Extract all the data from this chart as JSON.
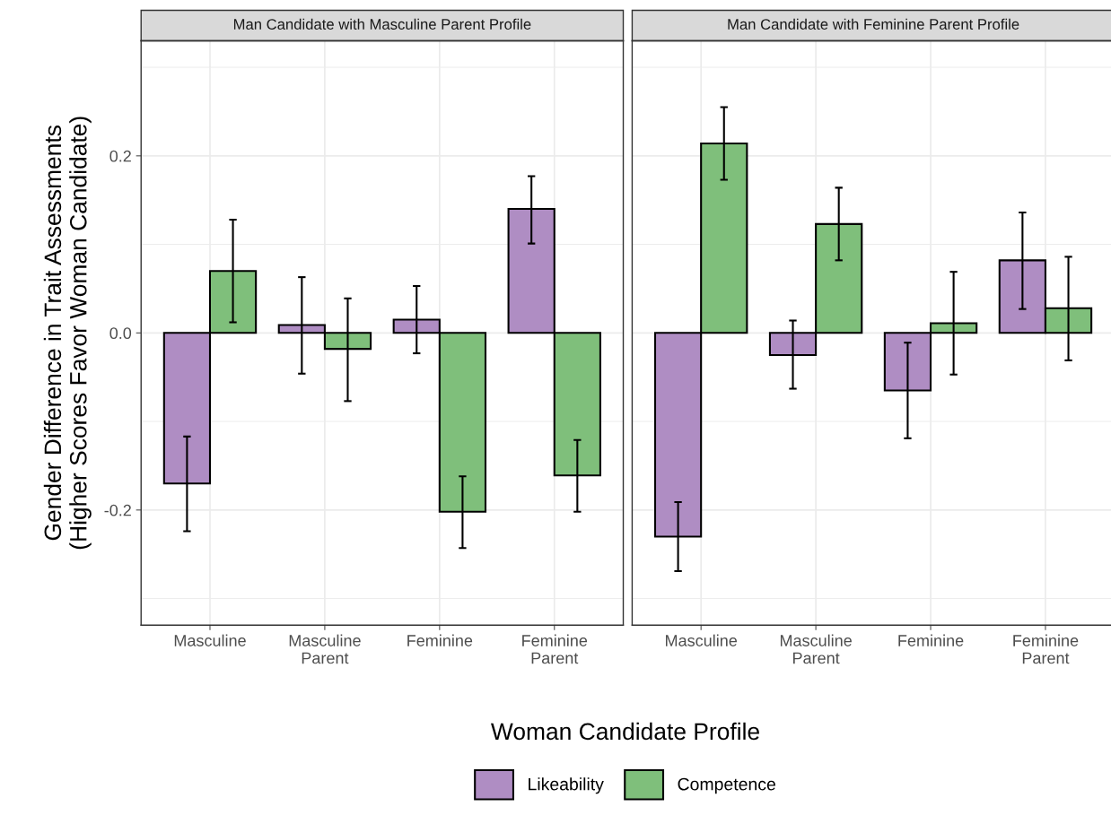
{
  "chart_data": [
    {
      "type": "bar",
      "title": "Man Candidate with Masculine Parent Profile",
      "ylabel": "Gender Difference in Trait Assessments\n(Higher Scores Favor Woman Candidate)",
      "xlabel": "Woman Candidate Profile",
      "categories": [
        "Masculine",
        "Masculine\nParent",
        "Feminine",
        "Feminine\nParent"
      ],
      "series": [
        {
          "name": "Likeability",
          "color": "#af8dc3",
          "values": [
            -0.17,
            0.009,
            0.015,
            0.14
          ],
          "errors": [
            [
              -0.224,
              -0.117
            ],
            [
              -0.046,
              0.063
            ],
            [
              -0.023,
              0.053
            ],
            [
              0.101,
              0.177
            ]
          ]
        },
        {
          "name": "Competence",
          "color": "#7fbf7b",
          "values": [
            0.07,
            -0.018,
            -0.202,
            -0.161
          ],
          "errors": [
            [
              0.012,
              0.128
            ],
            [
              -0.077,
              0.039
            ],
            [
              -0.243,
              -0.162
            ],
            [
              -0.202,
              -0.121
            ]
          ]
        }
      ],
      "ylim": [
        -0.33,
        0.33
      ],
      "yticks": [
        {
          "value": -0.2,
          "label": "-0.2"
        },
        {
          "value": 0.0,
          "label": "0.0"
        },
        {
          "value": 0.2,
          "label": "0.2"
        }
      ],
      "grid": true,
      "legend": "bottom"
    },
    {
      "type": "bar",
      "title": "Man Candidate with Feminine Parent Profile",
      "categories": [
        "Masculine",
        "Masculine\nParent",
        "Feminine",
        "Feminine\nParent"
      ],
      "series": [
        {
          "color": "#af8dc3",
          "values": [
            -0.23,
            -0.025,
            -0.065,
            0.082
          ],
          "errors": [
            [
              -0.269,
              -0.191
            ],
            [
              -0.063,
              0.014
            ],
            [
              -0.119,
              -0.011
            ],
            [
              0.027,
              0.136
            ]
          ]
        },
        {
          "color": "#7fbf7b",
          "values": [
            0.214,
            0.123,
            0.011,
            0.028
          ],
          "errors": [
            [
              0.173,
              0.255
            ],
            [
              0.082,
              0.164
            ],
            [
              -0.047,
              0.069
            ],
            [
              -0.031,
              0.086
            ]
          ]
        }
      ],
      "ylim": [
        -0.33,
        0.33
      ],
      "yticks": [
        {
          "value": -0.2,
          "label": null
        },
        {
          "value": 0.0,
          "label": null
        },
        {
          "value": 0.2,
          "label": null
        }
      ],
      "grid": true,
      "tick_labels": "x"
    }
  ]
}
